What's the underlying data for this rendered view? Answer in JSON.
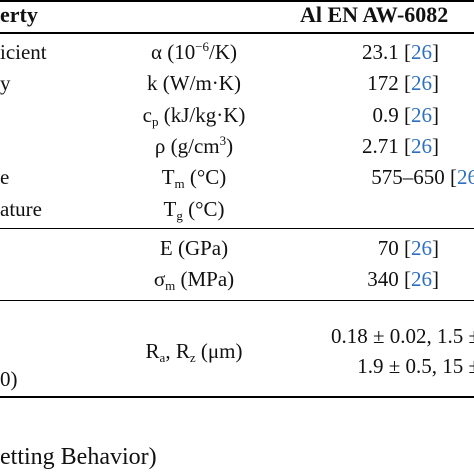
{
  "header": {
    "property": "erty",
    "material": "Al EN AW-6082"
  },
  "rows": [
    {
      "label": "icient",
      "symbol": "α (10",
      "symbol_sup": "−6",
      "symbol_tail": "/K)",
      "value": "23.1",
      "ref": "26"
    },
    {
      "label": "y",
      "symbol": "k (W/m·K)",
      "value": "172",
      "ref": "26"
    },
    {
      "label": "",
      "symbol": "c",
      "symbol_sub": "p",
      "symbol_tail": " (kJ/kg·K)",
      "value": "0.9",
      "ref": "26"
    },
    {
      "label": "",
      "symbol": "ρ (g/cm",
      "symbol_sup": "3",
      "symbol_tail": ")",
      "value": "2.71",
      "ref": "26"
    },
    {
      "label": "e",
      "symbol": "T",
      "symbol_sub": "m",
      "symbol_tail": " (°C)",
      "value": "575–650",
      "ref": "26"
    },
    {
      "label": "ature",
      "symbol": "T",
      "symbol_sub": "g",
      "symbol_tail": " (°C)",
      "value": "",
      "ref": ""
    },
    {
      "label": "",
      "symbol": "E (GPa)",
      "value": "70",
      "ref": "26"
    },
    {
      "label": "",
      "symbol": "σ",
      "symbol_sub": "m",
      "symbol_tail": " (MPa)",
      "value": "340",
      "ref": "26"
    }
  ],
  "roughness": {
    "label": "0)",
    "symbol_a": "R",
    "sub_a": "a",
    "symbol_mid": ", R",
    "sub_z": "z",
    "symbol_tail": " (μm)",
    "line1": "0.18 ± 0.02, 1.5 ±",
    "line2": "1.9 ± 0.5, 15 ±"
  },
  "footer": "etting Behavior)"
}
